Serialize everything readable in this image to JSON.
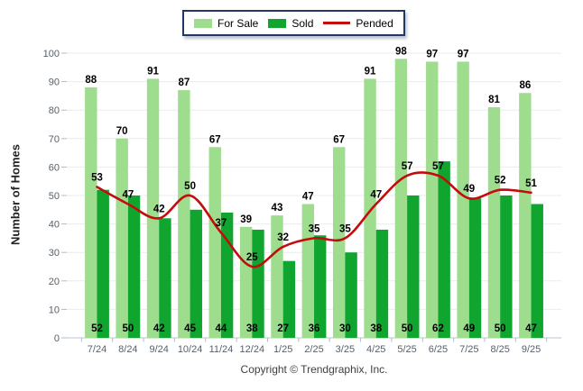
{
  "legend": {
    "items": [
      {
        "label": "For Sale",
        "swatch": "bar-light"
      },
      {
        "label": "Sold",
        "swatch": "bar-dark"
      },
      {
        "label": "Pended",
        "swatch": "line"
      }
    ]
  },
  "ylabel": "Number of Homes",
  "footer": "Copyright © Trendgraphix, Inc.",
  "colors": {
    "for_sale": "#9EDC8E",
    "sold": "#0FA52F",
    "pended": "#C40C0C",
    "grid": "#EBEBEB",
    "axis_line": "#C7D1DD",
    "tick": "#B3BCC6",
    "axis_text": "#57606A",
    "value_text": "#000000",
    "legend_border": "#1F3864"
  },
  "chart_data": {
    "type": "combo-bar-line",
    "title": "",
    "xlabel": "",
    "ylabel": "Number of Homes",
    "ylim": [
      0,
      100
    ],
    "ytick_step": 10,
    "yticks": [
      0,
      10,
      20,
      30,
      40,
      50,
      60,
      70,
      80,
      90,
      100
    ],
    "grid": true,
    "legend_position": "top-center",
    "categories": [
      "7/24",
      "8/24",
      "9/24",
      "10/24",
      "11/24",
      "12/24",
      "1/25",
      "2/25",
      "3/25",
      "4/25",
      "5/25",
      "6/25",
      "7/25",
      "8/25",
      "9/25"
    ],
    "series": [
      {
        "name": "For Sale",
        "type": "bar",
        "color": "#9EDC8E",
        "values": [
          88,
          70,
          91,
          87,
          67,
          39,
          43,
          47,
          67,
          91,
          98,
          97,
          97,
          81,
          86
        ],
        "label_position": "above-bar"
      },
      {
        "name": "Sold",
        "type": "bar",
        "color": "#0FA52F",
        "values": [
          52,
          50,
          42,
          45,
          44,
          38,
          27,
          36,
          30,
          38,
          50,
          62,
          49,
          50,
          47
        ],
        "label_position": "bar-bottom"
      },
      {
        "name": "Pended",
        "type": "line",
        "color": "#C40C0C",
        "values": [
          53,
          47,
          42,
          50,
          37,
          25,
          32,
          35,
          35,
          47,
          57,
          57,
          49,
          52,
          51
        ],
        "label_position": "above-point"
      }
    ]
  }
}
